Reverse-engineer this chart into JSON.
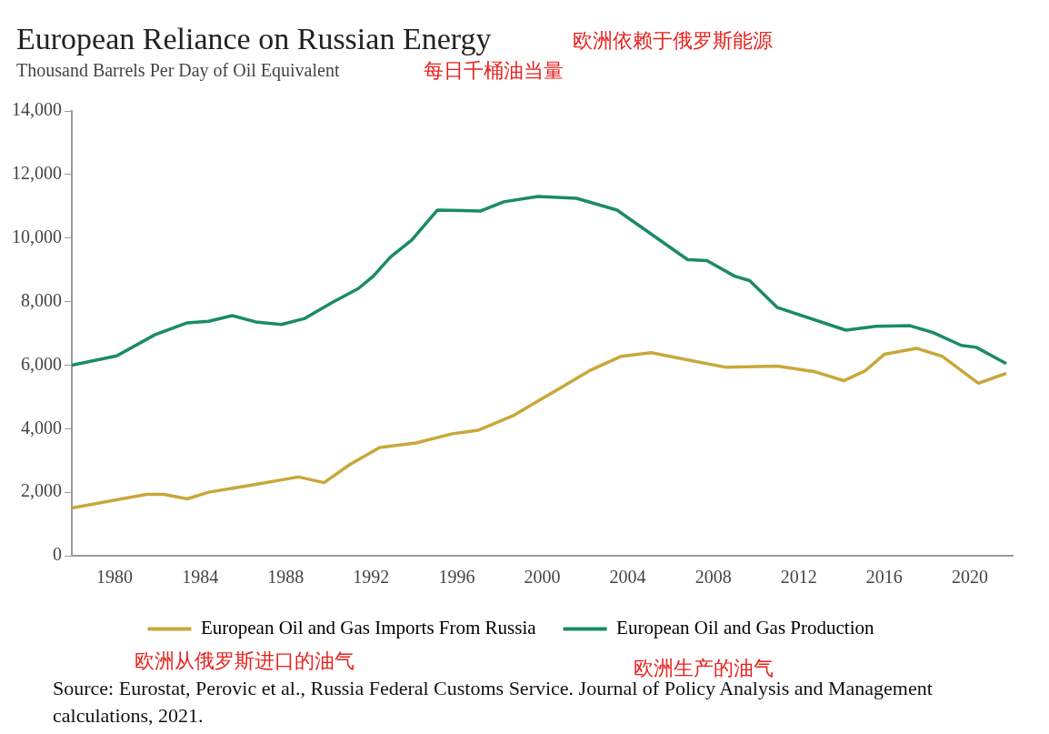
{
  "chart_data": {
    "type": "line",
    "title": "European Reliance on Russian Energy",
    "subtitle": "Thousand Barrels Per Day of Oil Equivalent",
    "xlim": [
      1978,
      2022
    ],
    "xticks": [
      1980,
      1984,
      1988,
      1992,
      1996,
      2000,
      2004,
      2008,
      2012,
      2016,
      2020
    ],
    "ylim": [
      0,
      14000
    ],
    "yticks": [
      0,
      {
        "value": 2000,
        "label": "2,000"
      },
      {
        "value": 4000,
        "label": "4,000"
      },
      {
        "value": 6000,
        "label": "6,000"
      },
      {
        "value": 8000,
        "label": "8,000"
      },
      {
        "value": 10000,
        "label": "10,000"
      },
      {
        "value": 12000,
        "label": "12,000"
      },
      {
        "value": 14000,
        "label": "14,000"
      }
    ],
    "grid": false,
    "legend": "bottom",
    "marker": "none",
    "line_style": "solid",
    "series": [
      {
        "name": "European Oil and Gas Imports From Russia",
        "color": "#c8a83a",
        "x": [
          1978.0,
          1981.5,
          1982.3,
          1983.4,
          1984.4,
          1986.3,
          1988.6,
          1989.8,
          1991.0,
          1992.4,
          1994.1,
          1995.8,
          1997.0,
          1998.7,
          1999.9,
          2000.8,
          2002.2,
          2003.7,
          2005.1,
          2006.6,
          2008.6,
          2011.0,
          2012.7,
          2014.1,
          2015.1,
          2016.0,
          2017.5,
          2018.7,
          2020.4,
          2021.7
        ],
        "values": [
          1500,
          1930,
          1930,
          1790,
          2000,
          2210,
          2480,
          2300,
          2870,
          3410,
          3550,
          3840,
          3950,
          4430,
          4910,
          5260,
          5820,
          6280,
          6390,
          6190,
          5930,
          5970,
          5800,
          5510,
          5820,
          6340,
          6530,
          6280,
          5430,
          5740
        ]
      },
      {
        "name": "European Oil and Gas Production",
        "color": "#1a8a6a",
        "x": [
          1978.0,
          1980.1,
          1981.9,
          1983.4,
          1984.4,
          1985.5,
          1986.6,
          1987.8,
          1988.9,
          1990.2,
          1991.4,
          1992.1,
          1992.9,
          1993.9,
          1995.1,
          1997.1,
          1998.2,
          1999.8,
          2001.6,
          2003.5,
          2005.0,
          2006.8,
          2007.7,
          2009.0,
          2009.7,
          2011.0,
          2014.2,
          2015.6,
          2017.2,
          2018.3,
          2019.6,
          2020.3,
          2021.7
        ],
        "values": [
          6000,
          6290,
          6960,
          7330,
          7380,
          7560,
          7360,
          7280,
          7470,
          7980,
          8410,
          8800,
          9400,
          9940,
          10880,
          10850,
          11140,
          11310,
          11250,
          10880,
          10170,
          9320,
          9290,
          8800,
          8660,
          7810,
          7100,
          7220,
          7240,
          7020,
          6620,
          6560,
          6050
        ]
      }
    ],
    "annotations": [
      "欧洲依赖于俄罗斯能源",
      "每日千桶油当量",
      "欧洲从俄罗斯进口的油气",
      "欧洲生产的油气",
      "Source: Eurostat, Perovic et al., Russia Federal Customs Service. Journal of Policy Analysis and Management calculations, 2021."
    ]
  }
}
